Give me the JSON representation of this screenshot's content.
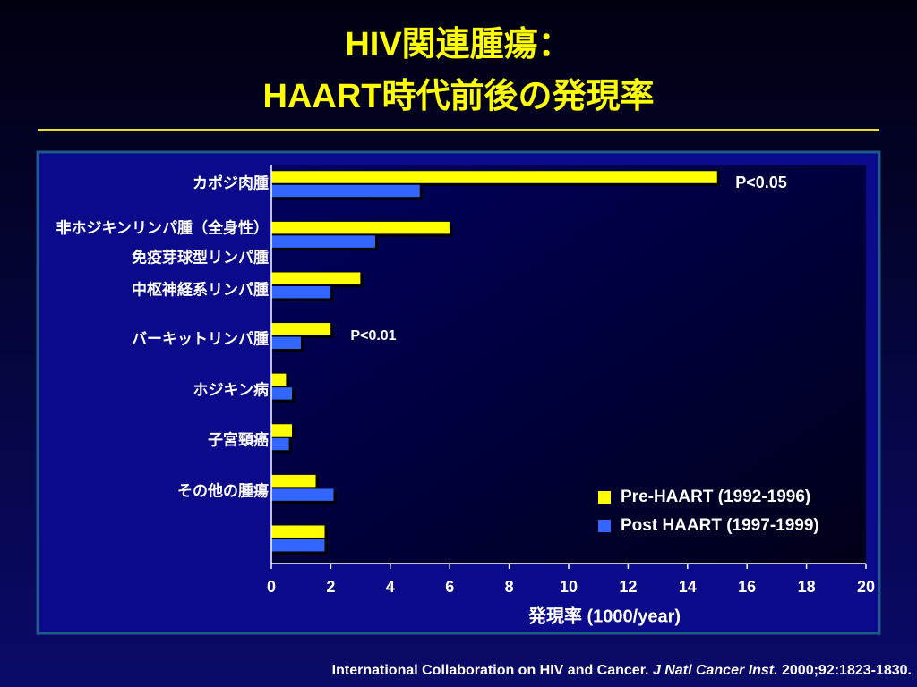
{
  "chart_data": {
    "type": "hbar",
    "title": [
      "HIV関連腫瘍：",
      "HAART時代前後の発現率"
    ],
    "categories": [
      "カポジ肉腫",
      "非ホジキンリンパ腫（全身性）",
      "中枢神経系リンパ腫",
      "バーキットリンパ腫",
      "ホジキン病",
      "子宮頸癌",
      "その他の腫瘍",
      null
    ],
    "extra_category_label": "免疫芽球型リンパ腫",
    "series": [
      {
        "name": "Pre-HAART (1992-1996)",
        "color": "#ffff00",
        "values": [
          15,
          6,
          3,
          2,
          0.5,
          0.7,
          1.5,
          1.8
        ]
      },
      {
        "name": "Post HAART (1997-1999)",
        "color": "#3366ff",
        "values": [
          5,
          3.5,
          2,
          1,
          0.7,
          0.6,
          2.1,
          1.8
        ]
      }
    ],
    "xlim": [
      0,
      20
    ],
    "xticks": [
      0,
      2,
      4,
      6,
      8,
      10,
      12,
      14,
      16,
      18,
      20
    ],
    "xlabel": "発現率 (1000/year)",
    "annotations": [
      "P<0.05",
      "P<0.01"
    ],
    "source": [
      "International Collaboration on HIV and Cancer. ",
      "J Natl Cancer Inst.",
      " 2000;92:1823-1830."
    ]
  }
}
